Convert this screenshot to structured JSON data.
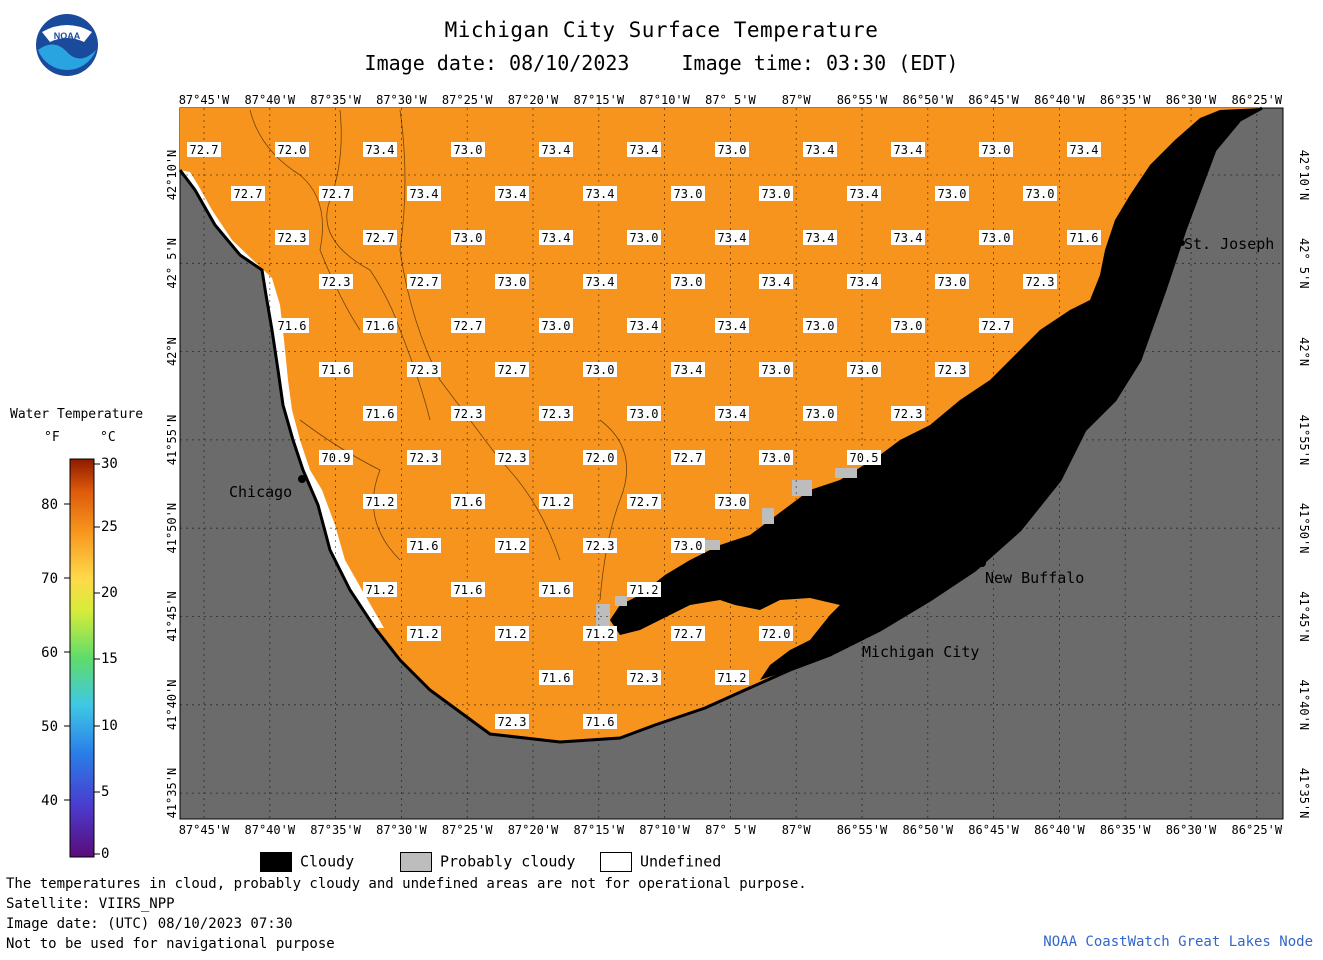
{
  "header": {
    "title": "Michigan City Surface Temperature",
    "image_date_label": "Image date: 08/10/2023",
    "image_time_label": "Image time: 03:30 (EDT)",
    "logo_text": "NOAA"
  },
  "colorbar": {
    "title": "Water Temperature",
    "unit_f": "°F",
    "unit_c": "°C",
    "f_ticks": [
      "80",
      "70",
      "60",
      "50",
      "40"
    ],
    "c_ticks": [
      "30",
      "25",
      "20",
      "15",
      "10",
      "5",
      "0"
    ]
  },
  "axes": {
    "lon_labels": [
      "87°45'W",
      "87°40'W",
      "87°35'W",
      "87°30'W",
      "87°25'W",
      "87°20'W",
      "87°15'W",
      "87°10'W",
      "87° 5'W",
      "87°W",
      "86°55'W",
      "86°50'W",
      "86°45'W",
      "86°40'W",
      "86°35'W",
      "86°30'W",
      "86°25'W"
    ],
    "lat_labels": [
      "42°10'N",
      "42° 5'N",
      "42°N",
      "41°55'N",
      "41°50'N",
      "41°45'N",
      "41°40'N",
      "41°35'N"
    ]
  },
  "places": [
    {
      "name": "St. Joseph"
    },
    {
      "name": "Chicago"
    },
    {
      "name": "New Buffalo"
    },
    {
      "name": "Michigan City"
    }
  ],
  "temperature_labels": [
    [
      "72.7",
      "72.0",
      "73.4",
      "73.0",
      "73.4",
      "73.4",
      "73.0",
      "73.4",
      "73.4",
      "73.0",
      "73.4"
    ],
    [
      "72.7",
      "72.7",
      "73.4",
      "73.4",
      "73.4",
      "73.0",
      "73.0",
      "73.4",
      "73.0",
      "73.0"
    ],
    [
      "72.3",
      "72.7",
      "73.0",
      "73.4",
      "73.0",
      "73.4",
      "73.4",
      "73.4",
      "73.0",
      "71.6"
    ],
    [
      "72.3",
      "72.7",
      "73.0",
      "73.4",
      "73.0",
      "73.4",
      "73.4",
      "73.0",
      "72.3"
    ],
    [
      "71.6",
      "71.6",
      "72.7",
      "73.0",
      "73.4",
      "73.4",
      "73.0",
      "73.0",
      "72.7"
    ],
    [
      "71.6",
      "72.3",
      "72.7",
      "73.0",
      "73.4",
      "73.0",
      "73.0",
      "72.3"
    ],
    [
      "71.6",
      "72.3",
      "72.3",
      "73.0",
      "73.4",
      "73.0",
      "72.3"
    ],
    [
      "70.9",
      "72.3",
      "72.3",
      "72.0",
      "72.7",
      "73.0",
      "70.5"
    ],
    [
      "71.2",
      "71.6",
      "71.2",
      "72.7",
      "73.0"
    ],
    [
      "71.6",
      "71.2",
      "72.3",
      "73.0"
    ],
    [
      "71.2",
      "71.6",
      "71.6",
      "71.2"
    ],
    [
      "71.2",
      "71.2",
      "71.2",
      "72.7",
      "72.0"
    ],
    [
      "71.6",
      "72.3",
      "71.2"
    ],
    [
      "72.3",
      "71.6"
    ]
  ],
  "legend": {
    "cloudy": "Cloudy",
    "probably_cloudy": "Probably cloudy",
    "undefined": "Undefined"
  },
  "footer": {
    "line1": "The temperatures in cloud, probably cloudy and undefined areas are not for operational purpose.",
    "line2": "Satellite: VIIRS_NPP",
    "line3": "Image date: (UTC) 08/10/2023  07:30",
    "line4": "Not to be used for navigational purpose",
    "credit": "NOAA CoastWatch Great Lakes Node"
  },
  "colors": {
    "water": "#f7941d",
    "land": "#6b6b6b",
    "cloud": "#000000",
    "probably_cloudy": "#bdbdbd",
    "undefined": "#ffffff"
  }
}
